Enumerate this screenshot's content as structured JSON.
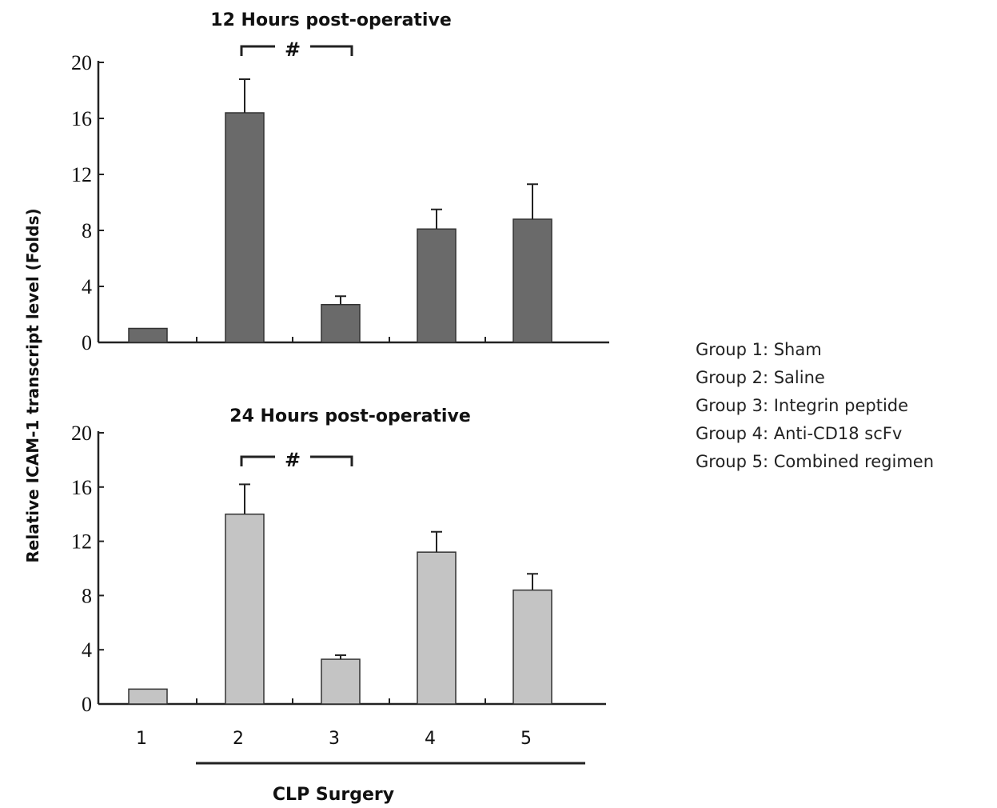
{
  "chart_data": [
    {
      "type": "bar",
      "title": "12 Hours post-operative",
      "ylabel": "Relative ICAM-1 transcript level (Folds)",
      "ylim": [
        0,
        20
      ],
      "yticks": [
        "0",
        "4",
        "8",
        "12",
        "16",
        "20"
      ],
      "categories": [
        "1",
        "2",
        "3",
        "4",
        "5"
      ],
      "values": [
        1.0,
        16.4,
        2.7,
        8.1,
        8.8
      ],
      "error": [
        0.0,
        2.4,
        0.6,
        1.4,
        2.5
      ],
      "bar_color": "#6a6a6a",
      "significance": {
        "label": "#",
        "between": [
          "2",
          "3"
        ]
      }
    },
    {
      "type": "bar",
      "title": "24 Hours post-operative",
      "ylabel": "Relative ICAM-1 transcript level (Folds)",
      "ylim": [
        0,
        20
      ],
      "yticks": [
        "0",
        "4",
        "8",
        "12",
        "16",
        "20"
      ],
      "categories": [
        "1",
        "2",
        "3",
        "4",
        "5"
      ],
      "values": [
        1.1,
        14.0,
        3.3,
        11.2,
        8.4
      ],
      "error": [
        0.0,
        2.2,
        0.3,
        1.5,
        1.2
      ],
      "bar_color": "#c4c4c4",
      "significance": {
        "label": "#",
        "between": [
          "2",
          "3"
        ]
      }
    }
  ],
  "ylabel": "Relative ICAM-1 transcript level (Folds)",
  "category_labels": [
    "1",
    "2",
    "3",
    "4",
    "5"
  ],
  "group_label": "CLP Surgery",
  "legend": [
    "Group 1: Sham",
    "Group 2: Saline",
    "Group 3: Integrin peptide",
    "Group 4: Anti-CD18 scFv",
    "Group 5: Combined regimen"
  ]
}
